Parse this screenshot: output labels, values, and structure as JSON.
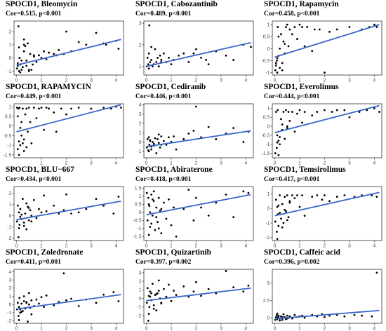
{
  "chart_data": [
    {
      "type": "scatter",
      "title": "SPOCD1, Bleomycin",
      "subtitle": "Cor=0.515, p<0.001",
      "xlim": [
        -0.1,
        4.3
      ],
      "ylim": [
        -1.3,
        2.8
      ],
      "xticks": [
        0,
        1,
        2,
        3,
        4
      ],
      "yticks": [
        -1,
        0,
        1,
        2
      ],
      "x": [
        0.02,
        0.05,
        0.08,
        0.1,
        0.12,
        0.15,
        0.2,
        0.25,
        0.3,
        0.35,
        0.4,
        0.45,
        0.5,
        0.55,
        0.6,
        0.65,
        0.7,
        0.8,
        0.9,
        1.0,
        1.1,
        1.2,
        1.3,
        1.5,
        1.6,
        1.7,
        1.9,
        2.0,
        2.2,
        2.5,
        2.8,
        3.2,
        3.5,
        3.6,
        4.0,
        4.1,
        0.05,
        0.15,
        0.3,
        0.4,
        0.5,
        0.7,
        0.3,
        0.2,
        0.1
      ],
      "y": [
        -0.8,
        -0.6,
        2.4,
        -1.0,
        0.0,
        -0.5,
        -0.9,
        -0.7,
        1.4,
        0.9,
        -0.6,
        1.1,
        -0.9,
        0.3,
        -0.9,
        -0.5,
        0.2,
        -0.3,
        0.2,
        0.0,
        0.5,
        -0.1,
        0.4,
        0.3,
        0.2,
        0.6,
        0.3,
        2.0,
        0.5,
        1.2,
        1.0,
        1.9,
        1.1,
        1.0,
        1.3,
        0.7,
        -0.4,
        -1.1,
        0.5,
        -0.2,
        -1.0,
        0.1,
        1.0,
        -0.2,
        0.8
      ],
      "fit": [
        [
          0,
          -0.55
        ],
        [
          4.2,
          1.4
        ]
      ]
    },
    {
      "type": "scatter",
      "title": "SPOCD1, Cabozantinib",
      "subtitle": "Cor=0.489, p<0.001",
      "xlim": [
        -0.1,
        4.3
      ],
      "ylim": [
        0.6,
        3.1
      ],
      "xticks": [
        0,
        1,
        2,
        3,
        4
      ],
      "yticks": [
        1,
        2,
        3
      ],
      "x": [
        0.02,
        0.05,
        0.08,
        0.1,
        0.12,
        0.15,
        0.2,
        0.25,
        0.3,
        0.35,
        0.4,
        0.45,
        0.5,
        0.55,
        0.6,
        0.7,
        0.8,
        0.9,
        1.0,
        1.1,
        1.3,
        1.5,
        1.7,
        1.9,
        2.0,
        2.2,
        2.4,
        2.5,
        2.8,
        3.2,
        3.5,
        3.9,
        4.2,
        0.1,
        0.3,
        0.5,
        0.2,
        0.6
      ],
      "y": [
        1.0,
        1.4,
        1.1,
        1.6,
        2.9,
        1.2,
        1.3,
        1.0,
        1.1,
        1.8,
        1.2,
        1.4,
        1.0,
        1.5,
        1.3,
        1.6,
        1.2,
        1.4,
        1.1,
        1.3,
        1.5,
        1.6,
        1.2,
        1.6,
        1.8,
        1.4,
        1.3,
        1.1,
        1.7,
        1.5,
        1.3,
        2.0,
        1.9,
        0.9,
        1.1,
        1.0,
        1.9,
        1.2
      ],
      "fit": [
        [
          0,
          1.0
        ],
        [
          4.2,
          2.1
        ]
      ]
    },
    {
      "type": "scatter",
      "title": "SPOCD1, Rapamycin",
      "subtitle": "Cor=0.458, p<0.001",
      "xlim": [
        -0.1,
        4.3
      ],
      "ylim": [
        -1.1,
        1.15
      ],
      "xticks": [
        0,
        1,
        2,
        3,
        4
      ],
      "yticks": [
        -1.0,
        -0.5,
        0.0,
        0.5,
        1.0
      ],
      "x": [
        0.02,
        0.05,
        0.08,
        0.1,
        0.12,
        0.15,
        0.2,
        0.25,
        0.3,
        0.35,
        0.4,
        0.45,
        0.5,
        0.55,
        0.6,
        0.7,
        0.8,
        0.9,
        1.0,
        1.1,
        1.2,
        1.3,
        1.5,
        1.6,
        1.8,
        2.0,
        2.2,
        2.5,
        3.0,
        3.5,
        3.8,
        4.0,
        4.1,
        0.1,
        0.2,
        0.3,
        0.15,
        0.4,
        0.05
      ],
      "y": [
        -0.9,
        -0.7,
        -0.5,
        -1.0,
        0.9,
        -0.3,
        -0.8,
        0.6,
        -0.6,
        0.3,
        -0.2,
        0.9,
        1.0,
        0.1,
        0.8,
        0.6,
        0.9,
        0.4,
        1.0,
        0.9,
        0.1,
        0.9,
        -0.1,
        0.8,
        0.8,
        -1.0,
        0.7,
        0.8,
        0.9,
        0.8,
        0.9,
        1.0,
        0.9,
        -0.4,
        0.0,
        -0.9,
        0.5,
        0.2,
        -0.6
      ],
      "fit": [
        [
          0,
          -0.35
        ],
        [
          4.2,
          1.0
        ]
      ]
    },
    {
      "type": "scatter",
      "title": "SPOCD1, RAPAMYCIN",
      "subtitle": "Cor=0.449, p<0.001",
      "xlim": [
        -0.1,
        4.3
      ],
      "ylim": [
        -1.65,
        1.15
      ],
      "xticks": [
        1,
        2,
        3,
        4
      ],
      "yticks": [
        -1.5,
        -1.0,
        -0.5,
        0.0,
        0.5,
        1.0
      ],
      "x": [
        0.02,
        0.05,
        0.08,
        0.1,
        0.12,
        0.15,
        0.2,
        0.25,
        0.3,
        0.35,
        0.4,
        0.45,
        0.5,
        0.55,
        0.6,
        0.7,
        0.8,
        0.9,
        1.0,
        1.1,
        1.2,
        1.3,
        1.5,
        1.6,
        1.8,
        2.0,
        2.2,
        2.5,
        3.0,
        3.5,
        3.8,
        4.0,
        4.2,
        0.1,
        0.2,
        0.3,
        0.15,
        0.4,
        0.05,
        0.25
      ],
      "y": [
        0.95,
        -1.2,
        0.9,
        -0.8,
        0.95,
        -1.0,
        -0.5,
        0.9,
        -1.3,
        0.6,
        0.9,
        -0.3,
        0.95,
        0.2,
        -0.9,
        0.95,
        0.4,
        0.9,
        0.95,
        -0.2,
        0.95,
        0.9,
        0.7,
        -0.3,
        0.9,
        0.6,
        0.9,
        0.95,
        0.9,
        0.95,
        0.9,
        1.0,
        0.95,
        -1.5,
        0.2,
        -0.7,
        -0.1,
        -1.1,
        0.5,
        -0.9
      ],
      "fit": [
        [
          0,
          -0.3
        ],
        [
          4.2,
          1.1
        ]
      ]
    },
    {
      "type": "scatter",
      "title": "SPOCD1, Cediranib",
      "subtitle": "Cor=0.446, p<0.001",
      "xlim": [
        -0.1,
        4.3
      ],
      "ylim": [
        -1.7,
        4.1
      ],
      "xticks": [
        0,
        1,
        2,
        3,
        4
      ],
      "yticks": [
        -1,
        0,
        1,
        2,
        3,
        4
      ],
      "x": [
        0.02,
        0.05,
        0.08,
        0.1,
        0.12,
        0.15,
        0.2,
        0.25,
        0.3,
        0.35,
        0.4,
        0.45,
        0.5,
        0.55,
        0.6,
        0.7,
        0.8,
        0.9,
        1.0,
        1.1,
        1.2,
        1.5,
        1.7,
        1.9,
        2.0,
        2.2,
        2.5,
        2.8,
        3.2,
        3.5,
        3.9,
        4.1,
        0.1,
        0.2,
        0.3,
        0.15,
        0.5,
        0.6
      ],
      "y": [
        -0.6,
        0.3,
        -0.9,
        0.5,
        -0.3,
        0.2,
        -0.5,
        0.0,
        -0.2,
        0.4,
        -1.2,
        0.3,
        -0.1,
        -0.6,
        0.6,
        0.1,
        -0.3,
        0.5,
        0.0,
        0.6,
        -0.8,
        0.3,
        0.9,
        1.2,
        3.8,
        0.5,
        1.6,
        0.3,
        0.9,
        1.5,
        0.0,
        1.1,
        -1.0,
        -0.8,
        -0.4,
        0.1,
        0.8,
        -0.3
      ],
      "fit": [
        [
          0,
          -0.5
        ],
        [
          4.2,
          1.2
        ]
      ]
    },
    {
      "type": "scatter",
      "title": "SPOCD1, Everolimus",
      "subtitle": "Cor=0.444, p<0.001",
      "xlim": [
        -0.1,
        4.3
      ],
      "ylim": [
        -1.75,
        1.25
      ],
      "xticks": [
        0,
        1,
        2,
        3,
        4
      ],
      "yticks": [
        -1.5,
        -1.0,
        -0.5,
        0.0,
        0.5,
        1.0
      ],
      "x": [
        0.02,
        0.05,
        0.08,
        0.1,
        0.12,
        0.15,
        0.2,
        0.25,
        0.3,
        0.35,
        0.4,
        0.45,
        0.5,
        0.55,
        0.6,
        0.7,
        0.8,
        0.9,
        1.0,
        1.1,
        1.2,
        1.5,
        1.7,
        2.0,
        2.3,
        2.5,
        2.8,
        3.0,
        3.4,
        3.7,
        4.0,
        4.2,
        0.1,
        0.2,
        0.3,
        0.15,
        0.5
      ],
      "y": [
        -1.5,
        0.8,
        -1.2,
        -0.9,
        0.9,
        -1.6,
        -0.6,
        0.4,
        -0.2,
        0.8,
        -0.7,
        0.9,
        0.0,
        0.8,
        0.3,
        0.8,
        -0.3,
        0.7,
        0.9,
        0.2,
        0.8,
        0.6,
        0.8,
        0.9,
        0.8,
        0.9,
        0.9,
        0.5,
        0.8,
        0.9,
        1.0,
        0.8,
        -0.5,
        -1.0,
        0.1,
        -0.8,
        -0.1
      ],
      "fit": [
        [
          0,
          -0.35
        ],
        [
          4.2,
          1.15
        ]
      ]
    },
    {
      "type": "scatter",
      "title": "SPOCD1, BLU−667",
      "subtitle": "Cor=0.434, p<0.001",
      "xlim": [
        -0.1,
        4.3
      ],
      "ylim": [
        -2.2,
        2.6
      ],
      "xticks": [
        0,
        1,
        2,
        3,
        4
      ],
      "yticks": [
        -2,
        -1,
        0,
        1,
        2
      ],
      "x": [
        0.02,
        0.05,
        0.08,
        0.1,
        0.12,
        0.15,
        0.2,
        0.25,
        0.3,
        0.35,
        0.4,
        0.45,
        0.5,
        0.55,
        0.6,
        0.7,
        0.8,
        0.9,
        1.0,
        1.1,
        1.2,
        1.5,
        1.7,
        1.9,
        2.0,
        2.2,
        2.5,
        2.8,
        3.2,
        3.5,
        3.9,
        4.1,
        0.1,
        0.2,
        0.3,
        0.15,
        0.5,
        0.6,
        0.4
      ],
      "y": [
        -0.5,
        0.9,
        -1.9,
        0.3,
        -0.8,
        0.6,
        -0.3,
        1.5,
        -0.6,
        0.2,
        -1.2,
        0.8,
        -0.4,
        0.5,
        0.0,
        1.4,
        -0.2,
        0.6,
        0.3,
        1.8,
        0.4,
        0.9,
        0.2,
        0.5,
        1.9,
        0.2,
        0.3,
        0.6,
        1.5,
        0.9,
        0.2,
        1.7,
        -1.1,
        0.1,
        -0.9,
        -0.1,
        0.7,
        -0.5,
        1.1
      ],
      "fit": [
        [
          0,
          -0.35
        ],
        [
          4.2,
          1.3
        ]
      ]
    },
    {
      "type": "scatter",
      "title": "SPOCD1, Abiraterone",
      "subtitle": "Cor=0.418, p<0.001",
      "xlim": [
        -0.1,
        4.3
      ],
      "ylim": [
        -1.75,
        1.6
      ],
      "xticks": [
        0,
        1,
        2,
        3,
        4
      ],
      "yticks": [
        -1.5,
        -1.0,
        -0.5,
        0.0,
        0.5,
        1.0,
        1.5
      ],
      "x": [
        0.02,
        0.05,
        0.08,
        0.1,
        0.12,
        0.15,
        0.2,
        0.25,
        0.3,
        0.35,
        0.4,
        0.45,
        0.5,
        0.55,
        0.6,
        0.7,
        0.8,
        0.9,
        1.0,
        1.1,
        1.2,
        1.5,
        1.7,
        1.9,
        2.0,
        2.2,
        2.5,
        2.8,
        3.2,
        3.5,
        3.9,
        4.1,
        0.1,
        0.2,
        0.3,
        0.15,
        0.5,
        0.6,
        0.4,
        0.25
      ],
      "y": [
        1.2,
        -0.5,
        0.9,
        -1.4,
        0.4,
        -0.9,
        1.1,
        -0.2,
        0.7,
        -1.1,
        0.3,
        -0.6,
        0.9,
        0.1,
        -1.3,
        0.6,
        -0.4,
        0.8,
        -0.8,
        0.3,
        -1.5,
        0.2,
        1.4,
        -0.5,
        0.9,
        0.3,
        -0.2,
        0.6,
        1.1,
        -0.3,
        1.3,
        1.2,
        0.5,
        -0.7,
        1.3,
        0.0,
        -1.0,
        0.2,
        -0.3,
        0.8
      ],
      "fit": [
        [
          0,
          -0.15
        ],
        [
          4.2,
          1.1
        ]
      ]
    },
    {
      "type": "scatter",
      "title": "SPOCD1, Temsirolimus",
      "subtitle": "Cor=0.417, p<0.001",
      "xlim": [
        -0.1,
        4.3
      ],
      "ylim": [
        -2.2,
        1.5
      ],
      "xticks": [
        0,
        1,
        2,
        3,
        4
      ],
      "yticks": [
        -2,
        -1,
        0,
        1
      ],
      "x": [
        0.02,
        0.05,
        0.08,
        0.1,
        0.12,
        0.15,
        0.2,
        0.25,
        0.3,
        0.35,
        0.4,
        0.45,
        0.5,
        0.55,
        0.6,
        0.7,
        0.8,
        0.9,
        1.0,
        1.1,
        1.2,
        1.5,
        1.7,
        1.9,
        2.0,
        2.2,
        2.5,
        2.8,
        3.2,
        3.5,
        3.9,
        4.1,
        0.1,
        0.2,
        0.3,
        0.15,
        0.5,
        0.6,
        0.4
      ],
      "y": [
        -0.9,
        0.6,
        -1.6,
        0.1,
        -0.4,
        -1.2,
        0.9,
        -0.7,
        0.3,
        -1.0,
        0.8,
        -0.2,
        0.9,
        -0.6,
        0.4,
        0.9,
        0.7,
        0.9,
        0.1,
        0.9,
        -0.5,
        0.8,
        0.9,
        0.6,
        0.9,
        0.5,
        0.8,
        0.9,
        0.8,
        0.9,
        0.9,
        0.8,
        -2.1,
        -0.3,
        -1.3,
        0.2,
        -0.8,
        0.5,
        -0.1
      ],
      "fit": [
        [
          0,
          -0.5
        ],
        [
          4.2,
          1.1
        ]
      ]
    },
    {
      "type": "scatter",
      "title": "SPOCD1, Zoledronate",
      "subtitle": "Cor=0.411, p=0.001",
      "xlim": [
        -0.1,
        4.3
      ],
      "ylim": [
        -2.3,
        4.3
      ],
      "xticks": [
        0,
        1,
        2,
        3,
        4
      ],
      "yticks": [
        -2,
        -1,
        0,
        1,
        2,
        3,
        4
      ],
      "x": [
        0.02,
        0.05,
        0.08,
        0.1,
        0.12,
        0.15,
        0.2,
        0.25,
        0.3,
        0.35,
        0.4,
        0.45,
        0.5,
        0.55,
        0.6,
        0.7,
        0.8,
        0.9,
        1.0,
        1.1,
        1.2,
        1.5,
        1.7,
        1.9,
        2.0,
        2.2,
        2.5,
        2.8,
        3.2,
        3.5,
        3.9,
        4.1,
        0.1,
        0.2,
        0.3,
        0.15,
        0.5,
        0.6,
        0.4
      ],
      "y": [
        -0.6,
        0.2,
        -1.4,
        -0.3,
        0.8,
        -1.0,
        0.1,
        -0.8,
        1.0,
        -0.5,
        0.3,
        -2.1,
        0.0,
        -0.4,
        0.5,
        -0.2,
        0.6,
        0.1,
        0.9,
        -0.3,
        1.1,
        -0.1,
        0.3,
        3.8,
        0.5,
        0.7,
        -0.2,
        0.6,
        0.2,
        1.2,
        1.5,
        0.4,
        -1.9,
        -0.9,
        0.4,
        -0.6,
        1.4,
        -1.2,
        0.2
      ],
      "fit": [
        [
          0,
          -0.55
        ],
        [
          4.2,
          1.2
        ]
      ]
    },
    {
      "type": "scatter",
      "title": "SPOCD1, Quizartinib",
      "subtitle": "Cor=0.397, p=0.002",
      "xlim": [
        -0.1,
        4.3
      ],
      "ylim": [
        -2.9,
        3.4
      ],
      "xticks": [
        0,
        1,
        2,
        3,
        4
      ],
      "yticks": [
        -2,
        -1,
        0,
        1,
        2,
        3
      ],
      "x": [
        0.02,
        0.05,
        0.08,
        0.1,
        0.12,
        0.15,
        0.2,
        0.25,
        0.3,
        0.35,
        0.4,
        0.45,
        0.5,
        0.55,
        0.6,
        0.7,
        0.8,
        0.9,
        1.0,
        1.1,
        1.2,
        1.5,
        1.7,
        1.9,
        2.0,
        2.2,
        2.5,
        2.8,
        3.2,
        3.5,
        3.9,
        4.1,
        0.1,
        0.2,
        0.3,
        0.15,
        0.5,
        0.6,
        0.4
      ],
      "y": [
        -0.5,
        1.2,
        -2.6,
        0.3,
        -1.0,
        0.8,
        -0.2,
        1.7,
        -0.8,
        0.4,
        -1.4,
        0.6,
        2.1,
        0.0,
        -0.5,
        1.1,
        0.2,
        1.6,
        -0.3,
        0.9,
        0.4,
        1.4,
        0.2,
        0.8,
        1.9,
        0.3,
        1.1,
        0.6,
        3.2,
        1.3,
        0.8,
        1.5,
        -1.8,
        0.6,
        -1.2,
        0.2,
        0.9,
        -0.6,
        0.5
      ],
      "fit": [
        [
          0,
          -0.25
        ],
        [
          4.2,
          1.2
        ]
      ]
    },
    {
      "type": "scatter",
      "title": "SPOCD1, Caffeic acid",
      "subtitle": "Cor=0.396, p=0.002",
      "xlim": [
        -0.1,
        4.3
      ],
      "ylim": [
        -0.8,
        7.0
      ],
      "xticks": [
        0,
        1,
        2,
        3,
        4
      ],
      "yticks": [
        0.0,
        2.5,
        5.0
      ],
      "x": [
        0.02,
        0.05,
        0.08,
        0.1,
        0.12,
        0.15,
        0.2,
        0.25,
        0.3,
        0.35,
        0.4,
        0.45,
        0.5,
        0.55,
        0.6,
        0.7,
        0.8,
        0.9,
        1.0,
        1.1,
        1.2,
        1.5,
        1.7,
        1.9,
        2.0,
        2.2,
        2.5,
        2.8,
        3.2,
        3.5,
        3.9,
        4.1,
        0.1,
        0.2,
        0.3,
        0.15,
        0.5
      ],
      "y": [
        -0.3,
        0.1,
        0.4,
        -0.2,
        0.0,
        0.3,
        -0.1,
        0.2,
        -0.3,
        0.5,
        0.1,
        -0.2,
        0.3,
        0.0,
        0.2,
        -0.1,
        0.4,
        0.1,
        0.2,
        0.3,
        0.0,
        0.4,
        0.2,
        0.5,
        0.1,
        0.3,
        0.4,
        0.2,
        0.4,
        0.3,
        0.2,
        6.5,
        0.6,
        -0.4,
        0.1,
        0.2,
        -0.1
      ],
      "fit": [
        [
          0,
          -0.15
        ],
        [
          4.2,
          1.05
        ]
      ]
    }
  ],
  "styles": {
    "point_color": "#000000",
    "fit_color": "#3a66c9",
    "frame_color": "#333333"
  }
}
